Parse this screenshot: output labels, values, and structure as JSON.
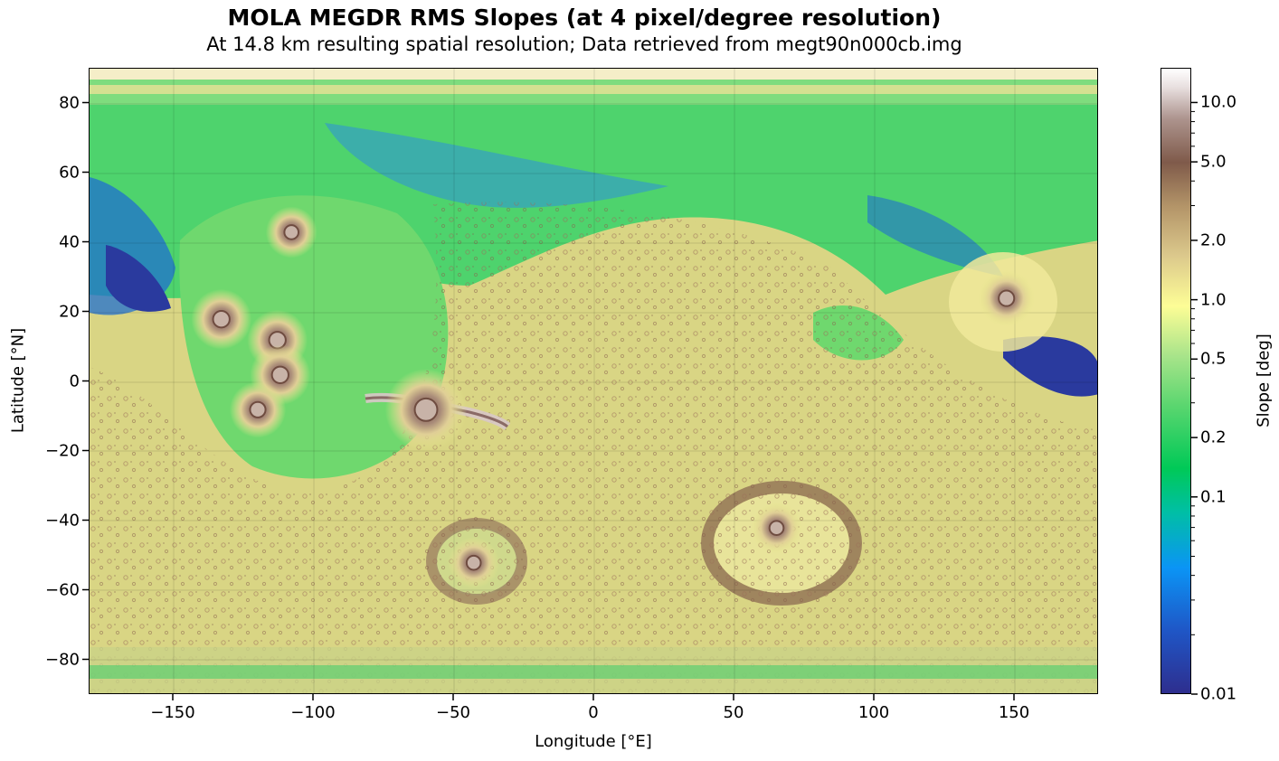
{
  "chart_data": {
    "type": "heatmap",
    "title": "MOLA MEGDR RMS Slopes (at 4 pixel/degree resolution)",
    "subtitle": "At 14.8 km resulting spatial resolution; Data retrieved from megt90n000cb.img",
    "xlabel": "Longitude [°E]",
    "ylabel": "Latitude [°N]",
    "xlim": [
      -180,
      180
    ],
    "ylim": [
      -90,
      90
    ],
    "x_ticks": [
      -150,
      -100,
      -50,
      0,
      50,
      100,
      150
    ],
    "x_tick_labels": [
      "−150",
      "−100",
      "−50",
      "0",
      "50",
      "100",
      "150"
    ],
    "y_ticks": [
      80,
      60,
      40,
      20,
      0,
      -20,
      -40,
      -60,
      -80
    ],
    "y_tick_labels": [
      "80",
      "60",
      "40",
      "20",
      "0",
      "−20",
      "−40",
      "−60",
      "−80"
    ],
    "grid": true,
    "colorbar": {
      "label": "Slope [deg]",
      "scale": "log",
      "range": [
        0.01,
        15
      ],
      "ticks": [
        0.01,
        0.1,
        0.2,
        0.5,
        1.0,
        2.0,
        5.0,
        10.0
      ],
      "tick_labels": [
        "0.01",
        "0.1",
        "0.2",
        "0.5",
        "1.0",
        "2.0",
        "5.0",
        "10.0"
      ],
      "colormap": "terrain"
    },
    "features": [
      {
        "lon": -133,
        "lat": 18,
        "slope": 3.0
      },
      {
        "lon": -113,
        "lat": 12,
        "slope": 3.0
      },
      {
        "lon": -112,
        "lat": 2,
        "slope": 3.0
      },
      {
        "lon": -120,
        "lat": -8,
        "slope": 2.5
      },
      {
        "lon": -108,
        "lat": 43,
        "slope": 2.0
      },
      {
        "lon": 147,
        "lat": 24,
        "slope": 2.5
      },
      {
        "lon": -60,
        "lat": -8,
        "slope": 8.0
      },
      {
        "lon": 65,
        "lat": -42,
        "slope": 2.0
      },
      {
        "lon": -43,
        "lat": -52,
        "slope": 2.0
      }
    ]
  }
}
